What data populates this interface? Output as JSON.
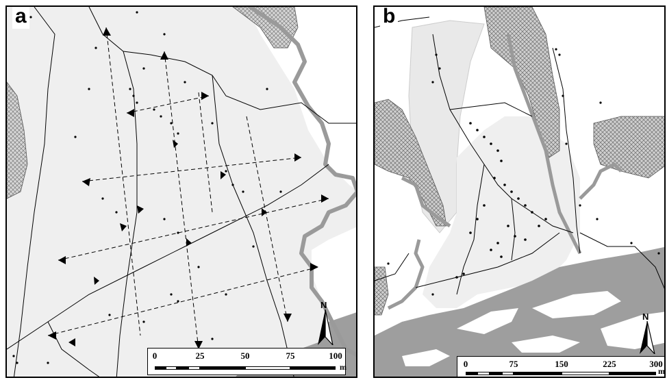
{
  "panels": [
    {
      "id": "a",
      "letter": "a",
      "scale": {
        "labels": [
          "0",
          "25",
          "50",
          "75",
          "100"
        ],
        "unit": "m"
      },
      "north_label": "N"
    },
    {
      "id": "b",
      "letter": "b",
      "scale": {
        "labels": [
          "0",
          "75",
          "150",
          "225",
          "300"
        ],
        "unit": "m"
      },
      "north_label": "N"
    }
  ],
  "legend_colors": {
    "study_area_fill": "#efefef",
    "river_fill": "#9e9e9e",
    "river_boundary": "#9a9a9a",
    "hatched_zone": "#cfcfcf",
    "line_color": "#000000"
  },
  "icons": [
    "north-arrow-icon",
    "transect-arrow-icon",
    "sample-point-icon"
  ]
}
